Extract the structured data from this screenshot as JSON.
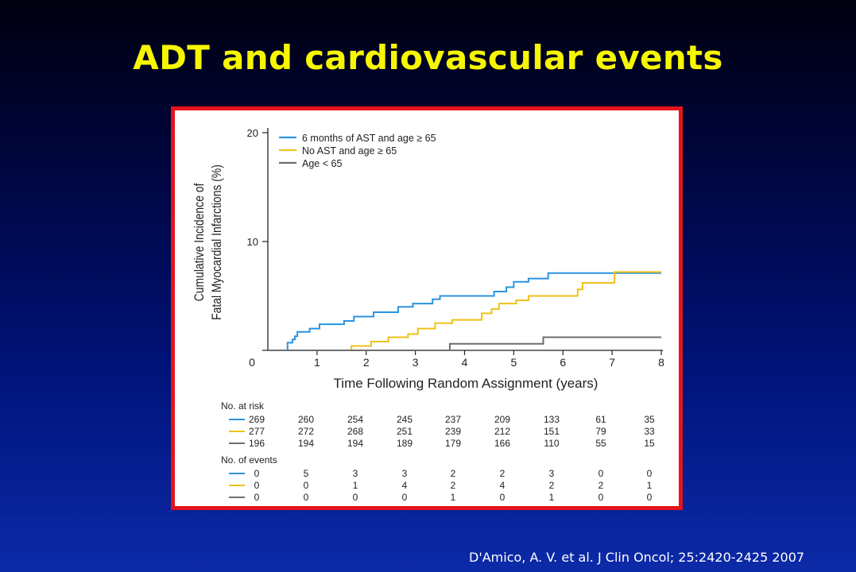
{
  "slide": {
    "title": "ADT and cardiovascular events",
    "citation": "D'Amico, A. V. et al. J Clin Oncol; 25:2420-2425 2007"
  },
  "chart_data": {
    "type": "line",
    "ylabel_line1": "Cumulative Incidence of",
    "ylabel_line2": "Fatal Myocardial Infarctions (%)",
    "xlabel": "Time Following Random Assignment (years)",
    "xlim": [
      0,
      8
    ],
    "ylim": [
      0,
      20
    ],
    "y_ticks": [
      0,
      10,
      20
    ],
    "x_ticks": [
      1,
      2,
      3,
      4,
      5,
      6,
      7,
      8
    ],
    "x_origin_label": "0",
    "grid": false,
    "legend_position": "top-left",
    "series": [
      {
        "name": "6 months of AST and age ≥ 65",
        "color": "#2a94e0",
        "steps": [
          [
            0,
            0
          ],
          [
            0.4,
            0.7
          ],
          [
            0.5,
            1.0
          ],
          [
            0.55,
            1.3
          ],
          [
            0.6,
            1.7
          ],
          [
            0.85,
            2.0
          ],
          [
            1.05,
            2.4
          ],
          [
            1.55,
            2.7
          ],
          [
            1.75,
            3.1
          ],
          [
            2.15,
            3.5
          ],
          [
            2.65,
            4.0
          ],
          [
            2.95,
            4.3
          ],
          [
            3.35,
            4.7
          ],
          [
            3.5,
            5.0
          ],
          [
            4.6,
            5.4
          ],
          [
            4.85,
            5.8
          ],
          [
            5.0,
            6.3
          ],
          [
            5.3,
            6.6
          ],
          [
            5.7,
            7.1
          ],
          [
            8,
            7.1
          ]
        ]
      },
      {
        "name": "No AST and age ≥ 65",
        "color": "#eec21a",
        "steps": [
          [
            0,
            0
          ],
          [
            1.7,
            0.4
          ],
          [
            2.1,
            0.8
          ],
          [
            2.45,
            1.2
          ],
          [
            2.85,
            1.5
          ],
          [
            3.05,
            2.0
          ],
          [
            3.4,
            2.5
          ],
          [
            3.75,
            2.8
          ],
          [
            4.35,
            3.4
          ],
          [
            4.55,
            3.8
          ],
          [
            4.7,
            4.3
          ],
          [
            5.05,
            4.6
          ],
          [
            5.3,
            5.0
          ],
          [
            6.3,
            5.6
          ],
          [
            6.4,
            6.2
          ],
          [
            7.05,
            7.2
          ],
          [
            8,
            7.2
          ]
        ]
      },
      {
        "name": "Age < 65",
        "color": "#6d6d6d",
        "steps": [
          [
            0,
            0
          ],
          [
            3.7,
            0.6
          ],
          [
            5.6,
            1.2
          ],
          [
            8,
            1.2
          ]
        ]
      }
    ],
    "risk_table": {
      "at_risk_title": "No. at risk",
      "events_title": "No. of events",
      "at_risk": [
        [
          "269",
          "260",
          "254",
          "245",
          "237",
          "209",
          "133",
          "61",
          "35"
        ],
        [
          "277",
          "272",
          "268",
          "251",
          "239",
          "212",
          "151",
          "79",
          "33"
        ],
        [
          "196",
          "194",
          "194",
          "189",
          "179",
          "166",
          "110",
          "55",
          "15"
        ]
      ],
      "events": [
        [
          "0",
          "5",
          "3",
          "3",
          "2",
          "2",
          "3",
          "0",
          "0"
        ],
        [
          "0",
          "0",
          "1",
          "4",
          "2",
          "4",
          "2",
          "2",
          "1"
        ],
        [
          "0",
          "0",
          "0",
          "0",
          "1",
          "0",
          "1",
          "0",
          "0"
        ]
      ]
    }
  }
}
